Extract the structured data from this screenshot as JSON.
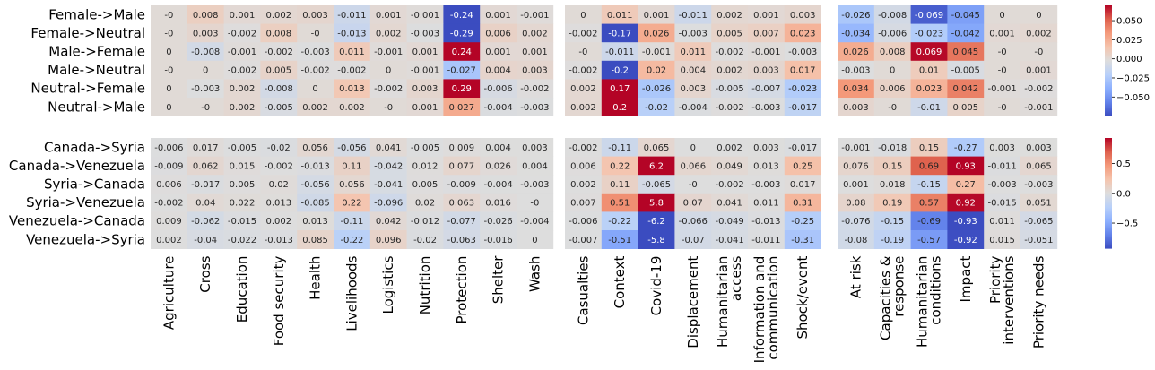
{
  "chart_data": {
    "type": "heatmap",
    "colormap": "coolwarm",
    "column_groups": [
      {
        "columns": [
          "Agriculture",
          "Cross",
          "Education",
          "Food security",
          "Health",
          "Livelihoods",
          "Logistics",
          "Nutrition",
          "Protection",
          "Shelter",
          "Wash"
        ]
      },
      {
        "columns": [
          "Casualties",
          "Context",
          "Covid-19",
          "Displacement",
          "Humanitarian\naccess",
          "Information and\ncommunication",
          "Shock/event"
        ]
      },
      {
        "columns": [
          "At risk",
          "Capacities &\nresponse",
          "Humanitarian\nconditions",
          "Impact",
          "Priority\ninterventions",
          "Priority needs"
        ]
      }
    ],
    "row_blocks": [
      {
        "rows": [
          "Female->Male",
          "Female->Neutral",
          "Male->Female",
          "Male->Neutral",
          "Neutral->Female",
          "Neutral->Male"
        ],
        "colorbar": {
          "vmin": -0.075,
          "vmax": 0.07,
          "ticks": [
            0.05,
            0.025,
            0.0,
            -0.025,
            -0.05
          ],
          "tick_labels": [
            "0.050",
            "0.025",
            "0.000",
            "−0.025",
            "−0.050"
          ]
        },
        "cells": [
          [
            [
              "-0",
              "0.008",
              "0.001",
              "0.002",
              "0.003",
              "-0.011",
              "0.001",
              "-0.001",
              "-0.24",
              "0.001",
              "-0.001"
            ],
            [
              "-0",
              "0.003",
              "-0.002",
              "0.008",
              "-0",
              "-0.013",
              "0.002",
              "-0.003",
              "-0.29",
              "0.006",
              "0.002"
            ],
            [
              "0",
              "-0.008",
              "-0.001",
              "-0.002",
              "-0.003",
              "0.011",
              "-0.001",
              "0.001",
              "0.24",
              "0.001",
              "0.001"
            ],
            [
              "-0",
              "0",
              "-0.002",
              "0.005",
              "-0.002",
              "-0.002",
              "0",
              "-0.001",
              "-0.027",
              "0.004",
              "0.003"
            ],
            [
              "0",
              "-0.003",
              "0.002",
              "-0.008",
              "0",
              "0.013",
              "-0.002",
              "0.003",
              "0.29",
              "-0.006",
              "-0.002"
            ],
            [
              "0",
              "-0",
              "0.002",
              "-0.005",
              "0.002",
              "0.002",
              "-0",
              "0.001",
              "0.027",
              "-0.004",
              "-0.003"
            ]
          ],
          [
            [
              "0",
              "0.011",
              "0.001",
              "-0.011",
              "0.002",
              "0.001",
              "0.003"
            ],
            [
              "-0.002",
              "-0.17",
              "0.026",
              "-0.003",
              "0.005",
              "0.007",
              "0.023"
            ],
            [
              "-0",
              "-0.011",
              "-0.001",
              "0.011",
              "-0.002",
              "-0.001",
              "-0.003"
            ],
            [
              "-0.002",
              "-0.2",
              "0.02",
              "0.004",
              "0.002",
              "0.003",
              "0.017"
            ],
            [
              "0.002",
              "0.17",
              "-0.026",
              "0.003",
              "-0.005",
              "-0.007",
              "-0.023"
            ],
            [
              "0.002",
              "0.2",
              "-0.02",
              "-0.004",
              "-0.002",
              "-0.003",
              "-0.017"
            ]
          ],
          [
            [
              "-0.026",
              "-0.008",
              "-0.069",
              "-0.045",
              "0",
              "0"
            ],
            [
              "-0.034",
              "-0.006",
              "-0.023",
              "-0.042",
              "0.001",
              "0.002"
            ],
            [
              "0.026",
              "0.008",
              "0.069",
              "0.045",
              "-0",
              "-0"
            ],
            [
              "-0.003",
              "0",
              "0.01",
              "-0.005",
              "-0",
              "0.001"
            ],
            [
              "0.034",
              "0.006",
              "0.023",
              "0.042",
              "-0.001",
              "-0.002"
            ],
            [
              "0.003",
              "-0",
              "-0.01",
              "0.005",
              "-0",
              "-0.001"
            ]
          ]
        ]
      },
      {
        "rows": [
          "Canada->Syria",
          "Canada->Venezuela",
          "Syria->Canada",
          "Syria->Venezuela",
          "Venezuela->Canada",
          "Venezuela->Syria"
        ],
        "colorbar": {
          "vmin": -0.93,
          "vmax": 0.93,
          "ticks": [
            0.5,
            0.0,
            -0.5
          ],
          "tick_labels": [
            "0.5",
            "0.0",
            "−0.5"
          ]
        },
        "cells": [
          [
            [
              "-0.006",
              "0.017",
              "-0.005",
              "-0.02",
              "0.056",
              "-0.056",
              "0.041",
              "-0.005",
              "0.009",
              "0.004",
              "0.003"
            ],
            [
              "-0.009",
              "0.062",
              "0.015",
              "-0.002",
              "-0.013",
              "0.11",
              "-0.042",
              "0.012",
              "0.077",
              "0.026",
              "0.004"
            ],
            [
              "0.006",
              "-0.017",
              "0.005",
              "0.02",
              "-0.056",
              "0.056",
              "-0.041",
              "0.005",
              "-0.009",
              "-0.004",
              "-0.003"
            ],
            [
              "-0.002",
              "0.04",
              "0.022",
              "0.013",
              "-0.085",
              "0.22",
              "-0.096",
              "0.02",
              "0.063",
              "0.016",
              "-0"
            ],
            [
              "0.009",
              "-0.062",
              "-0.015",
              "0.002",
              "0.013",
              "-0.11",
              "0.042",
              "-0.012",
              "-0.077",
              "-0.026",
              "-0.004"
            ],
            [
              "0.002",
              "-0.04",
              "-0.022",
              "-0.013",
              "0.085",
              "-0.22",
              "0.096",
              "-0.02",
              "-0.063",
              "-0.016",
              "0"
            ]
          ],
          [
            [
              "-0.002",
              "-0.11",
              "0.065",
              "0",
              "0.002",
              "0.003",
              "-0.017"
            ],
            [
              "0.006",
              "0.22",
              "6.2",
              "0.066",
              "0.049",
              "0.013",
              "0.25"
            ],
            [
              "0.002",
              "0.11",
              "-0.065",
              "-0",
              "-0.002",
              "-0.003",
              "0.017"
            ],
            [
              "0.007",
              "0.51",
              "5.8",
              "0.07",
              "0.041",
              "0.011",
              "0.31"
            ],
            [
              "-0.006",
              "-0.22",
              "-6.2",
              "-0.066",
              "-0.049",
              "-0.013",
              "-0.25"
            ],
            [
              "-0.007",
              "-0.51",
              "-5.8",
              "-0.07",
              "-0.041",
              "-0.011",
              "-0.31"
            ]
          ],
          [
            [
              "-0.001",
              "-0.018",
              "0.15",
              "-0.27",
              "0.003",
              "0.003"
            ],
            [
              "0.076",
              "0.15",
              "0.69",
              "0.93",
              "-0.011",
              "0.065"
            ],
            [
              "0.001",
              "0.018",
              "-0.15",
              "0.27",
              "-0.003",
              "-0.003"
            ],
            [
              "0.08",
              "0.19",
              "0.57",
              "0.92",
              "-0.015",
              "0.051"
            ],
            [
              "-0.076",
              "-0.15",
              "-0.69",
              "-0.93",
              "0.011",
              "-0.065"
            ],
            [
              "-0.08",
              "-0.19",
              "-0.57",
              "-0.92",
              "0.015",
              "-0.051"
            ]
          ]
        ]
      }
    ]
  }
}
